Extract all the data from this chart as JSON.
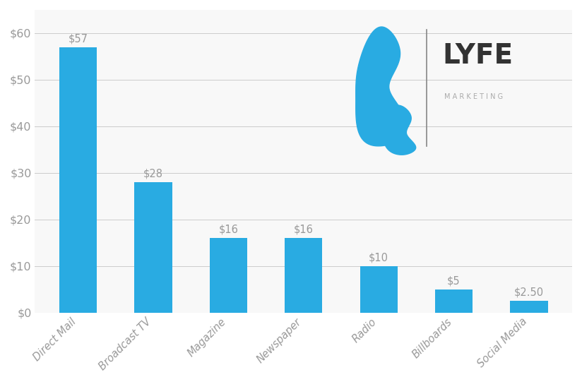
{
  "categories": [
    "Direct Mail",
    "Broadcast TV",
    "Magazine",
    "Newspaper",
    "Radio",
    "Billboards",
    "Social Media"
  ],
  "values": [
    57,
    28,
    16,
    16,
    10,
    5,
    2.5
  ],
  "bar_color": "#29ABE2",
  "value_labels": [
    "$57",
    "$28",
    "$16",
    "$16",
    "$10",
    "$5",
    "$2.50"
  ],
  "yticks": [
    0,
    10,
    20,
    30,
    40,
    50,
    60
  ],
  "ytick_labels": [
    "$0",
    "$10",
    "$20",
    "$30",
    "$40",
    "$50",
    "$60"
  ],
  "ylim": [
    0,
    65
  ],
  "background_color": "#ffffff",
  "grid_color": "#cccccc",
  "tick_label_color": "#999999",
  "value_label_color": "#999999",
  "bar_width": 0.5,
  "lyfe_color": "#333333",
  "lyfe_accent_color": "#29ABE2",
  "marketing_color": "#aaaaaa",
  "divider_color": "#888888"
}
